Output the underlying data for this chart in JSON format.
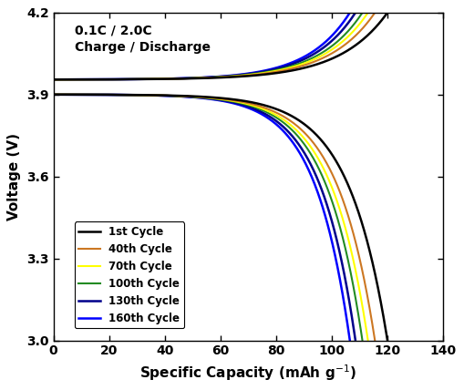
{
  "xlabel": "Specific Capacity (mAh g$^{-1}$)",
  "ylabel": "Voltage (V)",
  "xlim": [
    0,
    140
  ],
  "ylim": [
    3.0,
    4.2
  ],
  "xticks": [
    0,
    20,
    40,
    60,
    80,
    100,
    120,
    140
  ],
  "yticks": [
    3.0,
    3.3,
    3.6,
    3.9,
    4.2
  ],
  "annotation": "0.1C / 2.0C\nCharge / Discharge",
  "cycles": [
    {
      "label": "1st Cycle",
      "color": "#000000",
      "lw": 1.8,
      "cap": 120.0
    },
    {
      "label": "40th Cycle",
      "color": "#CC7722",
      "lw": 1.5,
      "cap": 115.5
    },
    {
      "label": "70th Cycle",
      "color": "#FFFF00",
      "lw": 1.5,
      "cap": 113.0
    },
    {
      "label": "100th Cycle",
      "color": "#228B22",
      "lw": 1.5,
      "cap": 111.0
    },
    {
      "label": "130th Cycle",
      "color": "#00008B",
      "lw": 1.8,
      "cap": 108.5
    },
    {
      "label": "160th Cycle",
      "color": "#0000FF",
      "lw": 1.8,
      "cap": 106.5
    }
  ],
  "background_color": "#ffffff",
  "charge_start_v": 3.955,
  "discharge_start_v": 3.9,
  "charge_curve_k": 7.0,
  "discharge_curve_k": 8.5,
  "figsize": [
    5.09,
    4.28
  ],
  "dpi": 100
}
